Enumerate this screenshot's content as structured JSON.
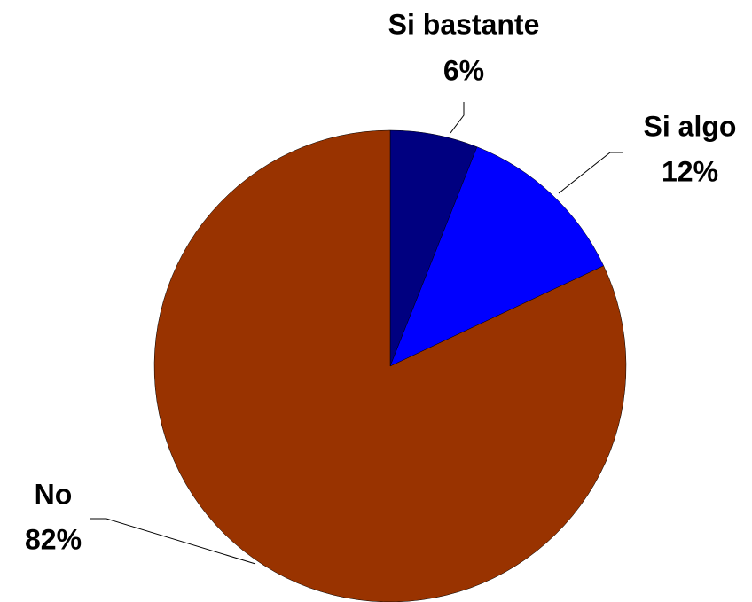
{
  "chart_data": {
    "type": "pie",
    "categories": [
      "Si bastante",
      "Si algo",
      "No"
    ],
    "values": [
      6,
      12,
      82
    ],
    "value_labels": [
      "6%",
      "12%",
      "82%"
    ],
    "colors": [
      "#000080",
      "#0000ff",
      "#993300"
    ]
  }
}
